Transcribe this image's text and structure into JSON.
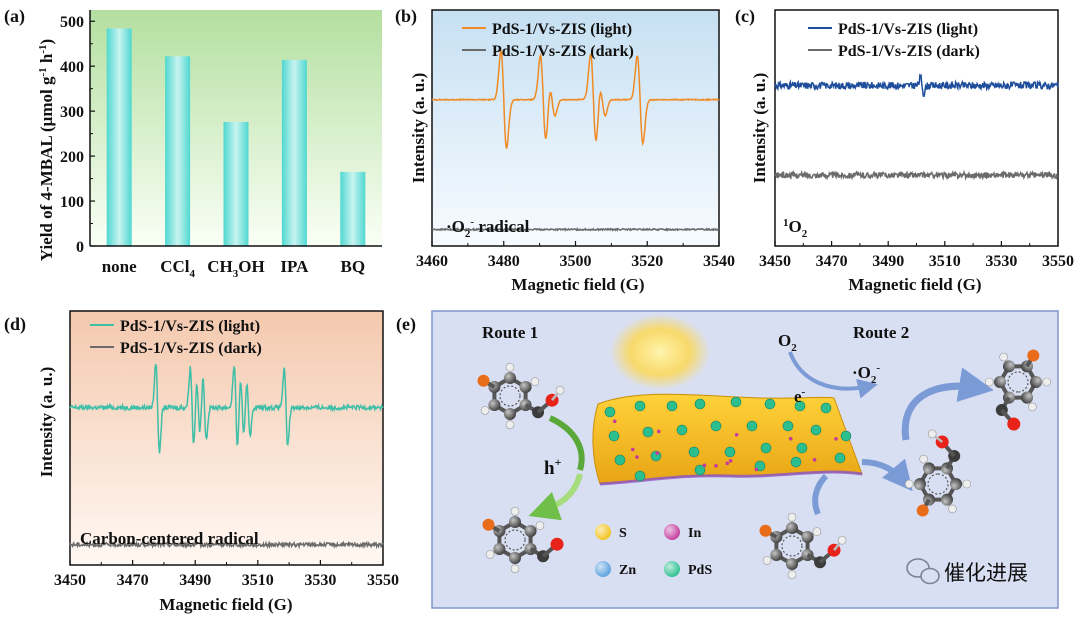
{
  "panel_labels": [
    "(a)",
    "(b)",
    "(c)",
    "(d)",
    "(e)"
  ],
  "chart_data": [
    {
      "panel": "(a)",
      "type": "bar",
      "categories": [
        "none",
        "CCl4",
        "CH3OH",
        "IPA",
        "BQ"
      ],
      "category_labels": [
        {
          "main": "none",
          "sub": ""
        },
        {
          "main": "CCl",
          "sub": "4"
        },
        {
          "main": "CH",
          "sub": "3",
          "tail": "OH"
        },
        {
          "main": "IPA",
          "sub": ""
        },
        {
          "main": "BQ",
          "sub": ""
        }
      ],
      "values": [
        484,
        422,
        276,
        414,
        165
      ],
      "ylabel": "Yield of 4-MBAL (μmol g⁻¹ h⁻¹)",
      "ylim": [
        0,
        500
      ],
      "yticks": [
        0,
        100,
        200,
        300,
        400,
        500
      ],
      "grid": false,
      "colors": {
        "bar_top": "#4ed8d0",
        "bar_mid": "#c9f3f0",
        "bg_top": "#b4dfa0",
        "bg_bottom": "#fafff6"
      }
    },
    {
      "panel": "(b)",
      "type": "line",
      "xlabel": "Magnetic field (G)",
      "ylabel": "Intensity (a. u.)",
      "xlim": [
        3460,
        3540
      ],
      "xticks": [
        3460,
        3480,
        3500,
        3520,
        3540
      ],
      "annotation": "·O₂⁻ radical",
      "series": [
        {
          "name": "PdS-1/Vs-ZIS (light)",
          "color": "#f08a24",
          "baseline": 0.62,
          "lines": [
            {
              "x": 3480,
              "a": 0.3
            },
            {
              "x": 3491,
              "a": 0.27
            },
            {
              "x": 3493.5,
              "a": 0.1
            },
            {
              "x": 3505,
              "a": 0.28
            },
            {
              "x": 3507.5,
              "a": 0.1
            },
            {
              "x": 3518,
              "a": 0.27
            }
          ]
        },
        {
          "name": "PdS-1/Vs-ZIS (dark)",
          "color": "#6b6b6b",
          "baseline": 0.07,
          "lines": []
        }
      ],
      "colors": {
        "bg_top": "#c6e0f2",
        "bg_bottom": "#f7fbff"
      }
    },
    {
      "panel": "(c)",
      "type": "line",
      "xlabel": "Magnetic field (G)",
      "ylabel": "Intensity (a. u.)",
      "xlim": [
        3450,
        3550
      ],
      "xticks": [
        3450,
        3470,
        3490,
        3510,
        3530,
        3550
      ],
      "annotation": "¹O₂",
      "series": [
        {
          "name": "PdS-1/Vs-ZIS (light)",
          "color": "#1f4e9c",
          "baseline": 0.68,
          "lines": [
            {
              "x": 3502,
              "a": 0.05
            }
          ]
        },
        {
          "name": "PdS-1/Vs-ZIS (dark)",
          "color": "#6b6b6b",
          "baseline": 0.3,
          "lines": []
        }
      ]
    },
    {
      "panel": "(d)",
      "type": "line",
      "xlabel": "Magnetic field (G)",
      "ylabel": "Intensity (a. u.)",
      "xlim": [
        3450,
        3550
      ],
      "xticks": [
        3450,
        3470,
        3490,
        3510,
        3530,
        3550
      ],
      "annotation": "Carbon-centered radical",
      "series": [
        {
          "name": "PdS-1/Vs-ZIS (light)",
          "color": "#3fbfa8",
          "baseline": 0.62,
          "lines": [
            {
              "x": 3478,
              "a": 0.26
            },
            {
              "x": 3489,
              "a": 0.23
            },
            {
              "x": 3491,
              "a": 0.16
            },
            {
              "x": 3493,
              "a": 0.18
            },
            {
              "x": 3503,
              "a": 0.24
            },
            {
              "x": 3505,
              "a": 0.18
            },
            {
              "x": 3507,
              "a": 0.16
            },
            {
              "x": 3519,
              "a": 0.22
            }
          ]
        },
        {
          "name": "PdS-1/Vs-ZIS (dark)",
          "color": "#6b6b6b",
          "baseline": 0.08,
          "lines": []
        }
      ],
      "colors": {
        "bg_top": "#f4c9ae",
        "bg_bottom": "#fff8f3"
      }
    }
  ],
  "scheme": {
    "route1": "Route 1",
    "route2": "Route 2",
    "o2": "O",
    "o2_sub": "2",
    "superoxide": "·O",
    "superoxide_sub": "2",
    "superoxide_sup": "-",
    "electron": "e",
    "electron_sup": "-",
    "hole": "h",
    "hole_sup": "+",
    "legend": [
      {
        "label": "S",
        "color": "#f2c21a"
      },
      {
        "label": "In",
        "color": "#c43a9e"
      },
      {
        "label": "Zn",
        "color": "#5aa0e0"
      },
      {
        "label": "PdS",
        "color": "#2bbf8f"
      }
    ],
    "watermark": "催化进展",
    "colors": {
      "panel_bg": "#d9dff2",
      "panel_border": "#7f95c9",
      "sheet": "#f2b81c",
      "arrow_blue": "#7b9bd6",
      "arrow_green": "#6fbf4a"
    }
  }
}
